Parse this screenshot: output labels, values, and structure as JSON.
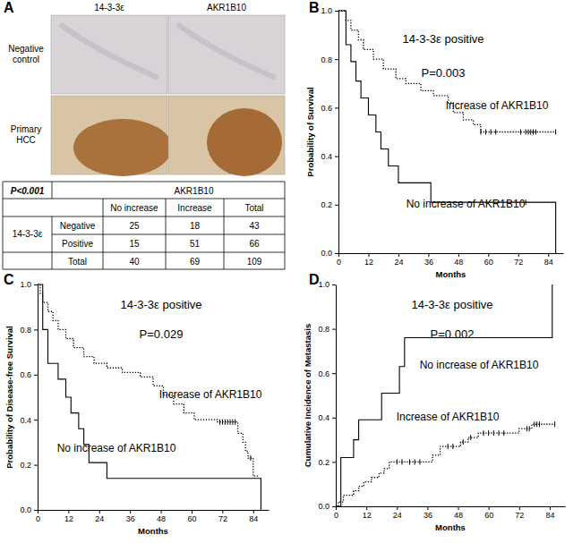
{
  "chart_data": [
    {
      "type": "table",
      "panel": "A",
      "image_columns": [
        "14-3-3ε",
        "AKR1B10"
      ],
      "image_rows": [
        "Negative control",
        "Primary HCC"
      ],
      "table": {
        "corner": "P<0.001",
        "column_group": "AKR1B10",
        "columns": [
          "No increase",
          "Increase",
          "Total"
        ],
        "row_group": "14-3-3ε",
        "rows": [
          {
            "label": "Negative",
            "values": [
              25,
              18,
              43
            ]
          },
          {
            "label": "Positive",
            "values": [
              15,
              51,
              66
            ]
          },
          {
            "label": "Total",
            "values": [
              40,
              69,
              109
            ]
          }
        ]
      }
    },
    {
      "type": "line",
      "panel": "B",
      "annotations": [
        "14-3-3ε positive",
        "P=0.003"
      ],
      "xlabel": "Months",
      "ylabel": "Probability of Survival",
      "xlim": [
        0,
        90
      ],
      "xticks": [
        0,
        12,
        24,
        36,
        48,
        60,
        72,
        84
      ],
      "ylim": [
        0,
        1
      ],
      "yticks": [
        {
          "value": 0,
          "label": "0.0"
        },
        0.2,
        0.4,
        0.6,
        0.8,
        {
          "value": 1,
          "label": "1.0"
        }
      ],
      "series": [
        {
          "name": "Increase of AKR1B10",
          "type": "line",
          "line_style": "dotted",
          "color": "#000000",
          "x": [
            0,
            3,
            5,
            8,
            10,
            14,
            18,
            23,
            27,
            33,
            38,
            44,
            46,
            50,
            54,
            57,
            87
          ],
          "values": [
            1,
            0.96,
            0.92,
            0.88,
            0.84,
            0.8,
            0.76,
            0.72,
            0.7,
            0.67,
            0.65,
            0.62,
            0.58,
            0.55,
            0.53,
            0.5,
            0.5
          ]
        },
        {
          "name": "No increase of AKR1B10",
          "type": "line",
          "line_style": "solid",
          "color": "#000000",
          "x": [
            0,
            3,
            5,
            7,
            9,
            12,
            15,
            17,
            20,
            24,
            37,
            87,
            87
          ],
          "values": [
            1,
            0.86,
            0.79,
            0.71,
            0.64,
            0.57,
            0.5,
            0.43,
            0.36,
            0.29,
            0.21,
            0.21,
            0
          ]
        },
        {
          "type": "scatter",
          "marker": "tick",
          "color": "#000000",
          "x": [
            57,
            59,
            61,
            63,
            73,
            75,
            76,
            77,
            78,
            79,
            87
          ],
          "values": [
            0.5,
            0.5,
            0.5,
            0.5,
            0.5,
            0.5,
            0.5,
            0.5,
            0.5,
            0.5,
            0.5
          ]
        },
        {
          "type": "scatter",
          "marker": "tick",
          "color": "#000000",
          "x": [
            75
          ],
          "values": [
            0.21
          ]
        }
      ]
    },
    {
      "type": "line",
      "panel": "C",
      "annotations": [
        "14-3-3ε positive",
        "P=0.029"
      ],
      "xlabel": "Months",
      "ylabel": "Probability of Disease-free Survival",
      "xlim": [
        0,
        90
      ],
      "xticks": [
        0,
        12,
        24,
        36,
        48,
        60,
        72,
        84
      ],
      "ylim": [
        0,
        1
      ],
      "yticks": [
        {
          "value": 0,
          "label": "0.0"
        },
        0.2,
        0.4,
        0.6,
        0.8,
        {
          "value": 1,
          "label": "1.0"
        }
      ],
      "series": [
        {
          "name": "Increase of AKR1B10",
          "type": "line",
          "line_style": "dotted",
          "color": "#000000",
          "x": [
            0,
            1,
            2,
            4,
            6,
            8,
            11,
            14,
            18,
            22,
            27,
            33,
            40,
            45,
            49,
            53,
            57,
            61,
            70,
            78,
            80,
            81,
            82,
            84,
            86
          ],
          "values": [
            1,
            0.96,
            0.92,
            0.88,
            0.84,
            0.8,
            0.76,
            0.72,
            0.68,
            0.65,
            0.63,
            0.61,
            0.59,
            0.55,
            0.51,
            0.47,
            0.43,
            0.4,
            0.39,
            0.34,
            0.3,
            0.26,
            0.23,
            0.15,
            0.15
          ]
        },
        {
          "name": "No increase of AKR1B10",
          "type": "line",
          "line_style": "solid",
          "color": "#000000",
          "x": [
            0,
            2,
            4,
            8,
            11,
            13,
            16,
            18,
            20,
            27,
            87,
            87
          ],
          "values": [
            1,
            0.8,
            0.65,
            0.58,
            0.5,
            0.43,
            0.36,
            0.29,
            0.21,
            0.14,
            0.14,
            0
          ]
        },
        {
          "type": "scatter",
          "marker": "tick",
          "color": "#000000",
          "x": [
            71,
            72,
            73,
            74,
            75,
            76,
            77,
            83
          ],
          "values": [
            0.39,
            0.39,
            0.39,
            0.39,
            0.39,
            0.39,
            0.39,
            0.23
          ]
        }
      ]
    },
    {
      "type": "line",
      "panel": "D",
      "annotations": [
        "14-3-3ε positive",
        "P=0.002"
      ],
      "xlabel": "Months",
      "ylabel": "Cumulative Incidence of Metastasis",
      "xlim": [
        0,
        90
      ],
      "xticks": [
        0,
        12,
        24,
        36,
        48,
        60,
        72,
        84
      ],
      "ylim": [
        0,
        1
      ],
      "yticks": [
        {
          "value": 0,
          "label": "0.0"
        },
        0.2,
        0.4,
        0.6,
        0.8,
        {
          "value": 1,
          "label": "1.0"
        }
      ],
      "series": [
        {
          "name": "Increase of AKR1B10",
          "type": "line",
          "line_style": "dotted",
          "color": "#000000",
          "x": [
            0,
            1,
            3,
            7,
            9,
            11,
            14,
            17,
            19,
            21,
            38,
            41,
            49,
            52,
            56,
            72,
            77,
            86
          ],
          "values": [
            0,
            0.02,
            0.05,
            0.07,
            0.09,
            0.11,
            0.13,
            0.15,
            0.17,
            0.2,
            0.23,
            0.27,
            0.29,
            0.31,
            0.33,
            0.35,
            0.37,
            0.37
          ]
        },
        {
          "name": "No increase of AKR1B10",
          "type": "line",
          "line_style": "solid",
          "color": "#000000",
          "x": [
            0,
            2,
            7,
            9,
            18,
            25,
            27,
            85,
            85
          ],
          "values": [
            0,
            0.22,
            0.3,
            0.39,
            0.51,
            0.63,
            0.76,
            0.76,
            1
          ]
        },
        {
          "type": "scatter",
          "marker": "tick",
          "color": "#000000",
          "x": [
            24,
            26,
            29,
            31,
            33,
            44,
            46,
            50,
            53,
            58,
            60,
            62,
            64,
            66,
            75,
            76,
            78,
            79,
            80,
            86
          ],
          "values": [
            0.2,
            0.2,
            0.2,
            0.2,
            0.2,
            0.27,
            0.27,
            0.29,
            0.31,
            0.33,
            0.33,
            0.33,
            0.33,
            0.33,
            0.35,
            0.35,
            0.37,
            0.37,
            0.37,
            0.37
          ]
        }
      ]
    }
  ]
}
